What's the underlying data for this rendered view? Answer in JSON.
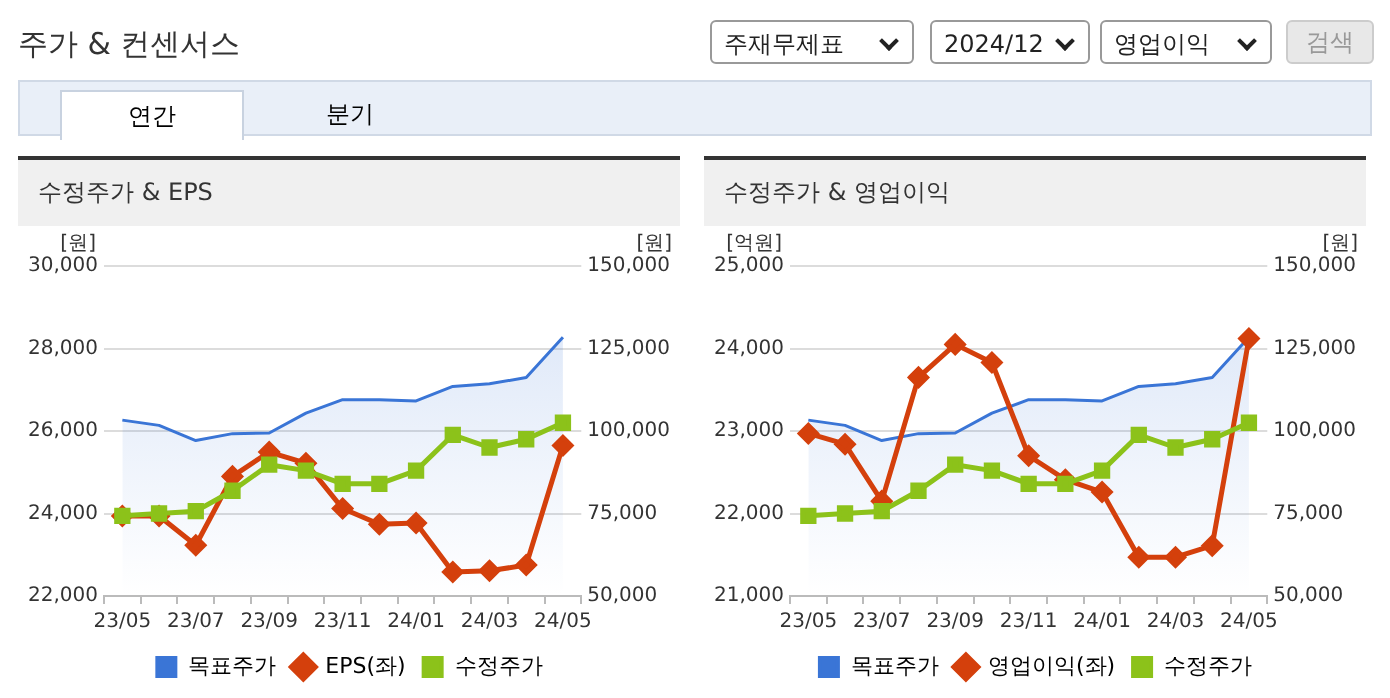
{
  "chart_data": [
    {
      "type": "other",
      "title": "주가 & 컨센서스",
      "annotations": [
        "주재무제표",
        "2024/12",
        "영업이익",
        "검색",
        "연간",
        "분기"
      ]
    },
    {
      "type": "line",
      "title": "수정주가 & EPS",
      "ylabel": "[원]",
      "y2label": "[원]",
      "categories": [
        "23/05",
        null,
        "23/07",
        null,
        "23/09",
        null,
        "23/11",
        null,
        "24/01",
        null,
        "24/03",
        null,
        "24/05"
      ],
      "series": [
        {
          "name": "목표주가",
          "type": "area",
          "axis": "y2",
          "color": "#3a75d6",
          "marker": "none",
          "values": [
            103300,
            101700,
            97100,
            99200,
            99400,
            105400,
            109500,
            109500,
            109100,
            113500,
            114300,
            116200,
            128400
          ]
        },
        {
          "name": "EPS(좌)",
          "type": "line",
          "axis": "y",
          "color": "#d4400c",
          "marker": "diamond",
          "values": [
            23940,
            23940,
            23230,
            24900,
            25490,
            25220,
            24120,
            23740,
            23770,
            22580,
            22610,
            22750,
            25650
          ]
        },
        {
          "name": "수정주가",
          "type": "line",
          "axis": "y2",
          "color": "#8cc21a",
          "marker": "square",
          "values": [
            74300,
            75000,
            75700,
            81900,
            89800,
            88000,
            84000,
            84000,
            88000,
            98800,
            95000,
            97500,
            102500
          ]
        }
      ],
      "ylim": [
        22000,
        30000
      ],
      "yticks": [
        {
          "value": 22000,
          "label": "22,000"
        },
        {
          "value": 24000,
          "label": "24,000"
        },
        {
          "value": 26000,
          "label": "26,000"
        },
        {
          "value": 28000,
          "label": "28,000"
        },
        {
          "value": 30000,
          "label": "30,000"
        }
      ],
      "y2lim": [
        50000,
        150000
      ],
      "y2ticks": [
        {
          "value": 50000,
          "label": "50,000"
        },
        {
          "value": 75000,
          "label": "75,000"
        },
        {
          "value": 100000,
          "label": "100,000"
        },
        {
          "value": 125000,
          "label": "125,000"
        },
        {
          "value": 150000,
          "label": "150,000"
        }
      ],
      "grid": "y",
      "legend": "bottom"
    },
    {
      "type": "line",
      "title": "수정주가 & 영업이익",
      "ylabel": "[억원]",
      "y2label": "[원]",
      "categories": [
        "23/05",
        null,
        "23/07",
        null,
        "23/09",
        null,
        "23/11",
        null,
        "24/01",
        null,
        "24/03",
        null,
        "24/05"
      ],
      "series": [
        {
          "name": "목표주가",
          "type": "area",
          "axis": "y2",
          "color": "#3a75d6",
          "marker": "none",
          "values": [
            103300,
            101700,
            97100,
            99200,
            99400,
            105400,
            109500,
            109500,
            109100,
            113500,
            114300,
            116200,
            128400
          ]
        },
        {
          "name": "영업이익(좌)",
          "type": "line",
          "axis": "y",
          "color": "#d4400c",
          "marker": "diamond",
          "values": [
            22970,
            22840,
            22150,
            23650,
            24050,
            23830,
            22700,
            22410,
            22260,
            21470,
            21470,
            21610,
            24120
          ]
        },
        {
          "name": "수정주가",
          "type": "line",
          "axis": "y2",
          "color": "#8cc21a",
          "marker": "square",
          "values": [
            74300,
            75000,
            75700,
            81900,
            89800,
            88000,
            84000,
            84000,
            88000,
            98800,
            95000,
            97500,
            102500
          ]
        }
      ],
      "ylim": [
        21000,
        25000
      ],
      "yticks": [
        {
          "value": 21000,
          "label": "21,000"
        },
        {
          "value": 22000,
          "label": "22,000"
        },
        {
          "value": 23000,
          "label": "23,000"
        },
        {
          "value": 24000,
          "label": "24,000"
        },
        {
          "value": 25000,
          "label": "25,000"
        }
      ],
      "y2lim": [
        50000,
        150000
      ],
      "y2ticks": [
        {
          "value": 50000,
          "label": "50,000"
        },
        {
          "value": 75000,
          "label": "75,000"
        },
        {
          "value": 100000,
          "label": "100,000"
        },
        {
          "value": 125000,
          "label": "125,000"
        },
        {
          "value": 150000,
          "label": "150,000"
        }
      ],
      "grid": "y",
      "legend": "bottom"
    }
  ]
}
